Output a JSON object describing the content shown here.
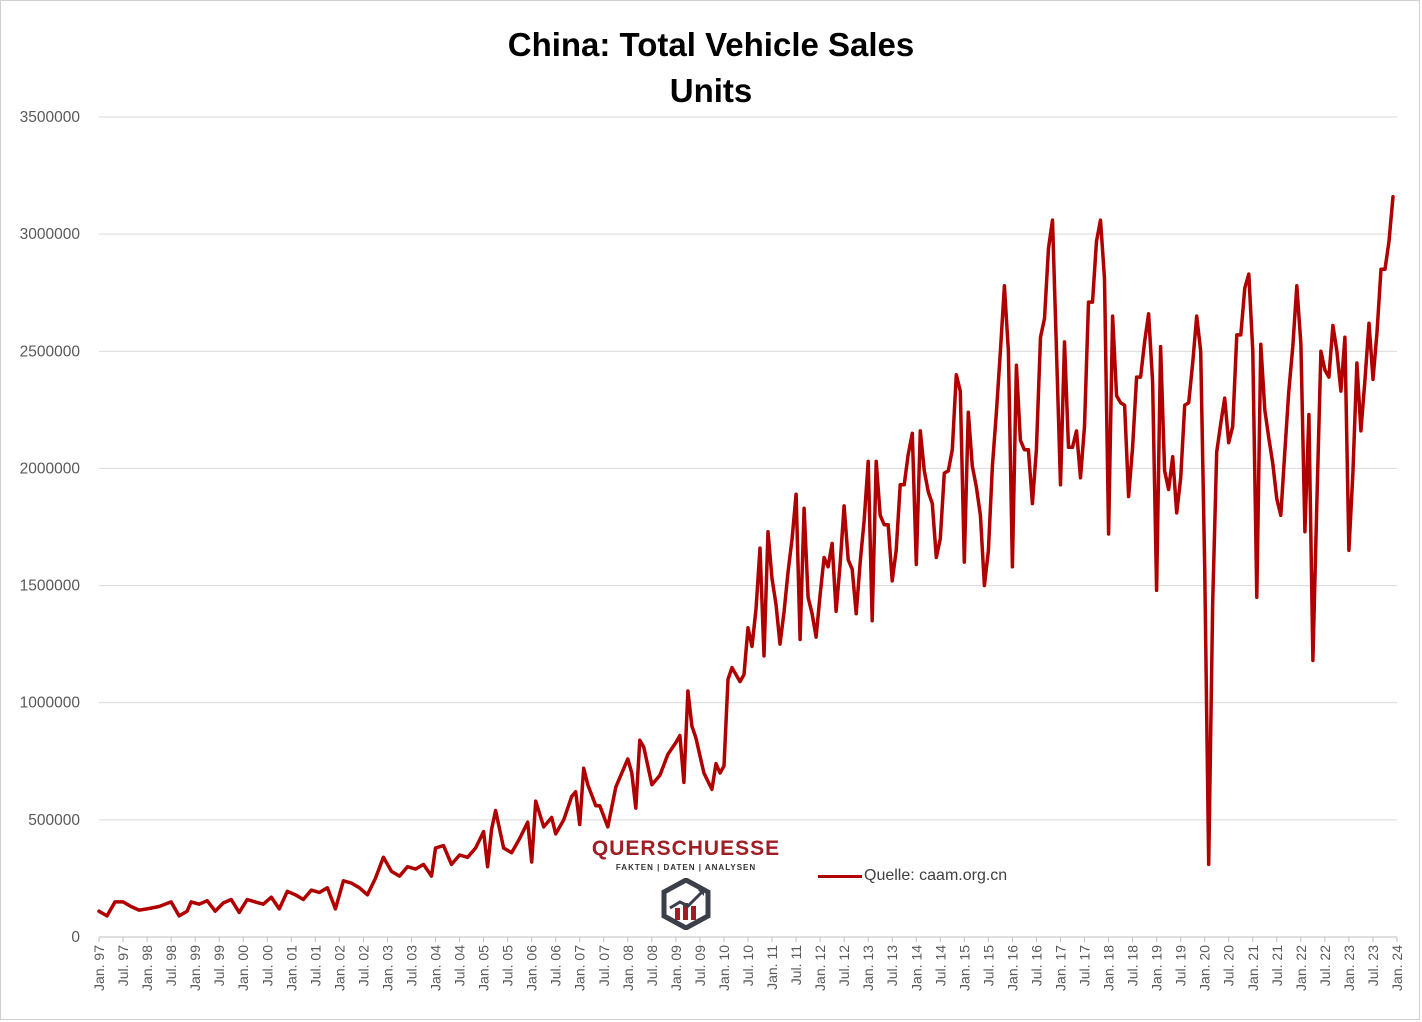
{
  "title": "China: Total Vehicle Sales",
  "subtitle": "Units",
  "legend_label": "Quelle: caam.org.cn",
  "logo": {
    "name": "QUERSCHUESSE",
    "tagline": "FAKTEN | DATEN | ANALYSEN"
  },
  "colors": {
    "series": "#b00000",
    "logo_red": "#a11d25",
    "grid": "#d9d9d9"
  },
  "chart_data": {
    "type": "line",
    "title": "China: Total Vehicle Sales",
    "subtitle": "Units",
    "ylim": [
      0,
      3500000
    ],
    "yticks": [
      0,
      500000,
      1000000,
      1500000,
      2000000,
      2500000,
      3000000,
      3500000
    ],
    "ytick_labels": [
      "0",
      "500000",
      "1000000",
      "1500000",
      "2000000",
      "2500000",
      "3000000",
      "3500000"
    ],
    "x_start": "1997-01",
    "x_end": "2024-01",
    "x_ticks": [
      "Jan. 97",
      "Jul. 97",
      "Jan. 98",
      "Jul. 98",
      "Jan. 99",
      "Jul. 99",
      "Jan. 00",
      "Jul. 00",
      "Jan. 01",
      "Jul. 01",
      "Jan. 02",
      "Jul. 02",
      "Jan. 03",
      "Jul. 03",
      "Jan. 04",
      "Jul. 04",
      "Jan. 05",
      "Jul. 05",
      "Jan. 06",
      "Jul. 06",
      "Jan. 07",
      "Jul. 07",
      "Jan. 08",
      "Jul. 08",
      "Jan. 09",
      "Jul. 09",
      "Jan. 10",
      "Jul. 10",
      "Jan. 11",
      "Jul. 11",
      "Jan. 12",
      "Jul. 12",
      "Jan. 13",
      "Jul. 13",
      "Jan. 14",
      "Jul. 14",
      "Jan. 15",
      "Jul. 15",
      "Jan. 16",
      "Jul. 16",
      "Jan. 17",
      "Jul. 17",
      "Jan. 18",
      "Jul. 18",
      "Jan. 19",
      "Jul. 19",
      "Jan. 20",
      "Jul. 20",
      "Jan. 21",
      "Jul. 21",
      "Jan. 22",
      "Jul. 22",
      "Jan. 23",
      "Jul. 23",
      "Jan. 24"
    ],
    "grid": "horizontal",
    "legend_position": "bottom-center",
    "series": [
      {
        "name": "Quelle: caam.org.cn",
        "color": "#b00000",
        "points": [
          [
            "1997-01",
            110000
          ],
          [
            "1997-03",
            90000
          ],
          [
            "1997-05",
            150000
          ],
          [
            "1997-07",
            150000
          ],
          [
            "1997-09",
            130000
          ],
          [
            "1997-11",
            115000
          ],
          [
            "1998-01",
            120000
          ],
          [
            "1998-04",
            130000
          ],
          [
            "1998-07",
            150000
          ],
          [
            "1998-09",
            90000
          ],
          [
            "1998-11",
            110000
          ],
          [
            "1998-12",
            150000
          ],
          [
            "1999-02",
            140000
          ],
          [
            "1999-04",
            155000
          ],
          [
            "1999-06",
            110000
          ],
          [
            "1999-08",
            145000
          ],
          [
            "1999-10",
            160000
          ],
          [
            "1999-12",
            105000
          ],
          [
            "2000-02",
            160000
          ],
          [
            "2000-04",
            150000
          ],
          [
            "2000-06",
            140000
          ],
          [
            "2000-08",
            170000
          ],
          [
            "2000-10",
            120000
          ],
          [
            "2000-12",
            195000
          ],
          [
            "2001-02",
            180000
          ],
          [
            "2001-04",
            160000
          ],
          [
            "2001-06",
            200000
          ],
          [
            "2001-08",
            190000
          ],
          [
            "2001-10",
            210000
          ],
          [
            "2001-12",
            120000
          ],
          [
            "2002-02",
            240000
          ],
          [
            "2002-04",
            230000
          ],
          [
            "2002-06",
            210000
          ],
          [
            "2002-08",
            180000
          ],
          [
            "2002-10",
            250000
          ],
          [
            "2002-12",
            340000
          ],
          [
            "2003-02",
            280000
          ],
          [
            "2003-04",
            260000
          ],
          [
            "2003-06",
            300000
          ],
          [
            "2003-08",
            290000
          ],
          [
            "2003-10",
            310000
          ],
          [
            "2003-12",
            260000
          ],
          [
            "2004-01",
            380000
          ],
          [
            "2004-03",
            390000
          ],
          [
            "2004-05",
            310000
          ],
          [
            "2004-07",
            350000
          ],
          [
            "2004-09",
            340000
          ],
          [
            "2004-11",
            380000
          ],
          [
            "2005-01",
            450000
          ],
          [
            "2005-02",
            300000
          ],
          [
            "2005-03",
            460000
          ],
          [
            "2005-04",
            540000
          ],
          [
            "2005-06",
            380000
          ],
          [
            "2005-08",
            360000
          ],
          [
            "2005-10",
            420000
          ],
          [
            "2005-12",
            490000
          ],
          [
            "2006-01",
            320000
          ],
          [
            "2006-02",
            580000
          ],
          [
            "2006-04",
            470000
          ],
          [
            "2006-06",
            510000
          ],
          [
            "2006-07",
            440000
          ],
          [
            "2006-09",
            500000
          ],
          [
            "2006-11",
            600000
          ],
          [
            "2006-12",
            620000
          ],
          [
            "2007-01",
            480000
          ],
          [
            "2007-02",
            720000
          ],
          [
            "2007-03",
            650000
          ],
          [
            "2007-05",
            560000
          ],
          [
            "2007-06",
            560000
          ],
          [
            "2007-08",
            470000
          ],
          [
            "2007-10",
            640000
          ],
          [
            "2007-12",
            720000
          ],
          [
            "2008-01",
            760000
          ],
          [
            "2008-02",
            700000
          ],
          [
            "2008-03",
            550000
          ],
          [
            "2008-04",
            840000
          ],
          [
            "2008-05",
            810000
          ],
          [
            "2008-07",
            650000
          ],
          [
            "2008-09",
            690000
          ],
          [
            "2008-11",
            780000
          ],
          [
            "2009-01",
            830000
          ],
          [
            "2009-02",
            860000
          ],
          [
            "2009-03",
            660000
          ],
          [
            "2009-04",
            1050000
          ],
          [
            "2009-05",
            900000
          ],
          [
            "2009-06",
            850000
          ],
          [
            "2009-08",
            700000
          ],
          [
            "2009-10",
            630000
          ],
          [
            "2009-11",
            740000
          ],
          [
            "2009-12",
            700000
          ],
          [
            "2010-01",
            730000
          ],
          [
            "2010-02",
            1100000
          ],
          [
            "2010-03",
            1150000
          ],
          [
            "2010-04",
            1120000
          ],
          [
            "2010-05",
            1090000
          ],
          [
            "2010-06",
            1120000
          ],
          [
            "2010-07",
            1320000
          ],
          [
            "2010-08",
            1240000
          ],
          [
            "2010-09",
            1400000
          ],
          [
            "2010-10",
            1660000
          ],
          [
            "2010-11",
            1200000
          ],
          [
            "2010-12",
            1730000
          ],
          [
            "2011-01",
            1530000
          ],
          [
            "2011-02",
            1420000
          ],
          [
            "2011-03",
            1250000
          ],
          [
            "2011-04",
            1390000
          ],
          [
            "2011-05",
            1560000
          ],
          [
            "2011-06",
            1700000
          ],
          [
            "2011-07",
            1890000
          ],
          [
            "2011-08",
            1270000
          ],
          [
            "2011-09",
            1830000
          ],
          [
            "2011-10",
            1450000
          ],
          [
            "2011-11",
            1380000
          ],
          [
            "2011-12",
            1280000
          ],
          [
            "2012-01",
            1460000
          ],
          [
            "2012-02",
            1620000
          ],
          [
            "2012-03",
            1580000
          ],
          [
            "2012-04",
            1680000
          ],
          [
            "2012-05",
            1390000
          ],
          [
            "2012-06",
            1590000
          ],
          [
            "2012-07",
            1840000
          ],
          [
            "2012-08",
            1610000
          ],
          [
            "2012-09",
            1570000
          ],
          [
            "2012-10",
            1380000
          ],
          [
            "2012-11",
            1600000
          ],
          [
            "2012-12",
            1780000
          ],
          [
            "2013-01",
            2030000
          ],
          [
            "2013-02",
            1350000
          ],
          [
            "2013-03",
            2030000
          ],
          [
            "2013-04",
            1800000
          ],
          [
            "2013-05",
            1760000
          ],
          [
            "2013-06",
            1760000
          ],
          [
            "2013-07",
            1520000
          ],
          [
            "2013-08",
            1650000
          ],
          [
            "2013-09",
            1930000
          ],
          [
            "2013-10",
            1930000
          ],
          [
            "2013-11",
            2060000
          ],
          [
            "2013-12",
            2150000
          ],
          [
            "2014-01",
            1590000
          ],
          [
            "2014-02",
            2160000
          ],
          [
            "2014-03",
            1990000
          ],
          [
            "2014-04",
            1900000
          ],
          [
            "2014-05",
            1850000
          ],
          [
            "2014-06",
            1620000
          ],
          [
            "2014-07",
            1700000
          ],
          [
            "2014-08",
            1980000
          ],
          [
            "2014-09",
            1990000
          ],
          [
            "2014-10",
            2080000
          ],
          [
            "2014-11",
            2400000
          ],
          [
            "2014-12",
            2330000
          ],
          [
            "2015-01",
            1600000
          ],
          [
            "2015-02",
            2240000
          ],
          [
            "2015-03",
            2010000
          ],
          [
            "2015-04",
            1920000
          ],
          [
            "2015-05",
            1800000
          ],
          [
            "2015-06",
            1500000
          ],
          [
            "2015-07",
            1650000
          ],
          [
            "2015-08",
            2010000
          ],
          [
            "2015-09",
            2240000
          ],
          [
            "2015-10",
            2500000
          ],
          [
            "2015-11",
            2780000
          ],
          [
            "2015-12",
            2500000
          ],
          [
            "2016-01",
            1580000
          ],
          [
            "2016-02",
            2440000
          ],
          [
            "2016-03",
            2120000
          ],
          [
            "2016-04",
            2080000
          ],
          [
            "2016-05",
            2080000
          ],
          [
            "2016-06",
            1850000
          ],
          [
            "2016-07",
            2080000
          ],
          [
            "2016-08",
            2560000
          ],
          [
            "2016-09",
            2640000
          ],
          [
            "2016-10",
            2940000
          ],
          [
            "2016-11",
            3060000
          ],
          [
            "2016-12",
            2500000
          ],
          [
            "2017-01",
            1930000
          ],
          [
            "2017-02",
            2540000
          ],
          [
            "2017-03",
            2090000
          ],
          [
            "2017-04",
            2090000
          ],
          [
            "2017-05",
            2160000
          ],
          [
            "2017-06",
            1960000
          ],
          [
            "2017-07",
            2180000
          ],
          [
            "2017-08",
            2710000
          ],
          [
            "2017-09",
            2710000
          ],
          [
            "2017-10",
            2970000
          ],
          [
            "2017-11",
            3060000
          ],
          [
            "2017-12",
            2810000
          ],
          [
            "2018-01",
            1720000
          ],
          [
            "2018-02",
            2650000
          ],
          [
            "2018-03",
            2310000
          ],
          [
            "2018-04",
            2280000
          ],
          [
            "2018-05",
            2270000
          ],
          [
            "2018-06",
            1880000
          ],
          [
            "2018-07",
            2090000
          ],
          [
            "2018-08",
            2390000
          ],
          [
            "2018-09",
            2390000
          ],
          [
            "2018-10",
            2540000
          ],
          [
            "2018-11",
            2660000
          ],
          [
            "2018-12",
            2370000
          ],
          [
            "2019-01",
            1480000
          ],
          [
            "2019-02",
            2520000
          ],
          [
            "2019-03",
            1990000
          ],
          [
            "2019-04",
            1910000
          ],
          [
            "2019-05",
            2050000
          ],
          [
            "2019-06",
            1810000
          ],
          [
            "2019-07",
            1960000
          ],
          [
            "2019-08",
            2270000
          ],
          [
            "2019-09",
            2280000
          ],
          [
            "2019-10",
            2450000
          ],
          [
            "2019-11",
            2650000
          ],
          [
            "2019-12",
            2500000
          ],
          [
            "2020-01",
            1580000
          ],
          [
            "2020-02",
            310000
          ],
          [
            "2020-03",
            1430000
          ],
          [
            "2020-04",
            2070000
          ],
          [
            "2020-05",
            2190000
          ],
          [
            "2020-06",
            2300000
          ],
          [
            "2020-07",
            2110000
          ],
          [
            "2020-08",
            2180000
          ],
          [
            "2020-09",
            2570000
          ],
          [
            "2020-10",
            2570000
          ],
          [
            "2020-11",
            2770000
          ],
          [
            "2020-12",
            2830000
          ],
          [
            "2021-01",
            2500000
          ],
          [
            "2021-02",
            1450000
          ],
          [
            "2021-03",
            2530000
          ],
          [
            "2021-04",
            2250000
          ],
          [
            "2021-05",
            2130000
          ],
          [
            "2021-06",
            2020000
          ],
          [
            "2021-07",
            1870000
          ],
          [
            "2021-08",
            1800000
          ],
          [
            "2021-09",
            2070000
          ],
          [
            "2021-10",
            2330000
          ],
          [
            "2021-11",
            2520000
          ],
          [
            "2021-12",
            2780000
          ],
          [
            "2022-01",
            2530000
          ],
          [
            "2022-02",
            1730000
          ],
          [
            "2022-03",
            2230000
          ],
          [
            "2022-04",
            1180000
          ],
          [
            "2022-05",
            1860000
          ],
          [
            "2022-06",
            2500000
          ],
          [
            "2022-07",
            2420000
          ],
          [
            "2022-08",
            2390000
          ],
          [
            "2022-09",
            2610000
          ],
          [
            "2022-10",
            2500000
          ],
          [
            "2022-11",
            2330000
          ],
          [
            "2022-12",
            2560000
          ],
          [
            "2023-01",
            1650000
          ],
          [
            "2023-02",
            1980000
          ],
          [
            "2023-03",
            2450000
          ],
          [
            "2023-04",
            2160000
          ],
          [
            "2023-05",
            2380000
          ],
          [
            "2023-06",
            2620000
          ],
          [
            "2023-07",
            2380000
          ],
          [
            "2023-08",
            2580000
          ],
          [
            "2023-09",
            2850000
          ],
          [
            "2023-10",
            2850000
          ],
          [
            "2023-11",
            2970000
          ],
          [
            "2023-12",
            3160000
          ]
        ]
      }
    ]
  }
}
